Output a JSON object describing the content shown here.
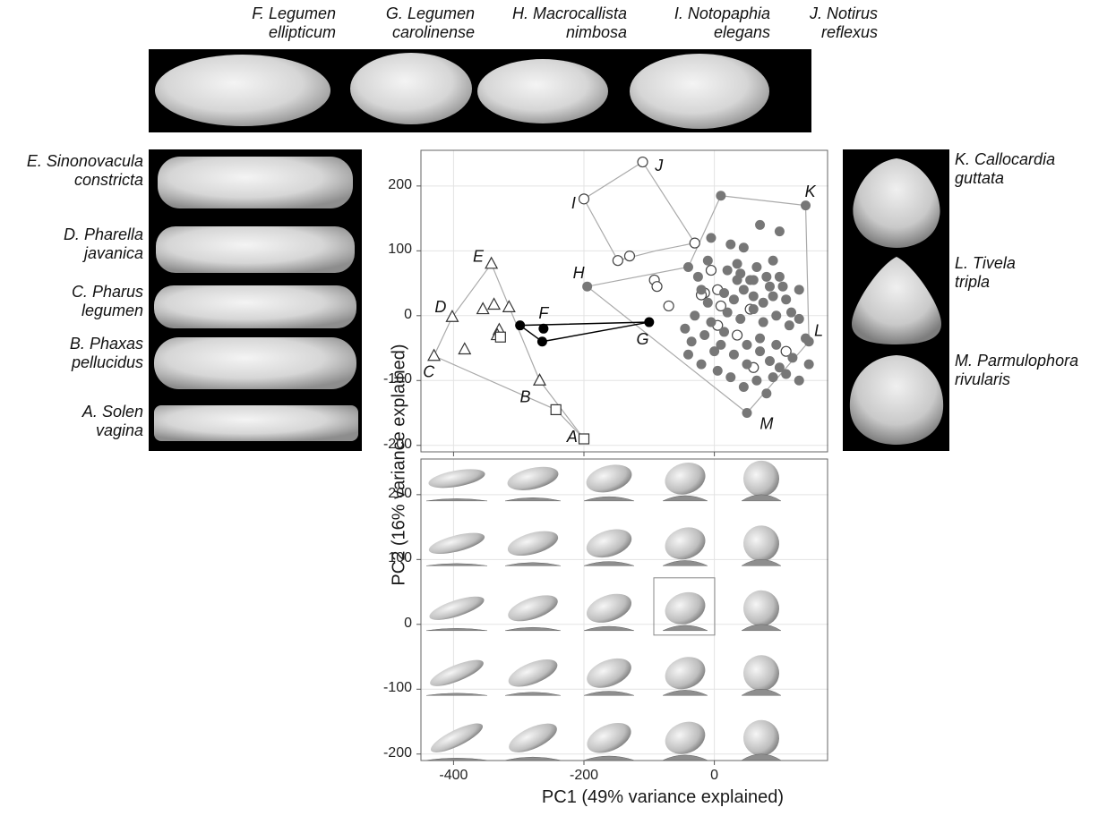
{
  "top_labels": [
    {
      "letter": "F.",
      "genus": "Legumen",
      "species": "ellipticum"
    },
    {
      "letter": "G.",
      "genus": "Legumen",
      "species": "carolinense"
    },
    {
      "letter": "H.",
      "genus": "Macrocallista",
      "species": "nimbosa"
    },
    {
      "letter": "I.",
      "genus": "Notopaphia",
      "species": "elegans"
    },
    {
      "letter": "J.",
      "genus": "Notirus",
      "species": "reflexus"
    }
  ],
  "left_labels": [
    {
      "letter": "E.",
      "genus": "Sinonovacula",
      "species": "constricta"
    },
    {
      "letter": "D.",
      "genus": "Pharella",
      "species": "javanica"
    },
    {
      "letter": "C.",
      "genus": "Pharus",
      "species": "legumen"
    },
    {
      "letter": "B.",
      "genus": "Phaxas",
      "species": "pellucidus"
    },
    {
      "letter": "A.",
      "genus": "Solen",
      "species": "vagina"
    }
  ],
  "right_labels": [
    {
      "letter": "K.",
      "genus": "Callocardia",
      "species": "guttata"
    },
    {
      "letter": "L.",
      "genus": "Tivela",
      "species": "tripla"
    },
    {
      "letter": "M.",
      "genus": "Parmulophora",
      "species": "rivularis"
    }
  ],
  "colors": {
    "grid": "#e3e3e3",
    "hull": "#aaaaaa",
    "gray_point": "#777777",
    "black_point": "#000000",
    "panel_bg": "#000000"
  },
  "chart_data": [
    {
      "type": "scatter",
      "xlabel": "PC1 (49% variance explained)",
      "ylabel": "PC2 (16% variance explained)",
      "xlim": [
        -450,
        175
      ],
      "ylim": [
        -210,
        255
      ],
      "x_ticks": [
        -400,
        -200,
        0
      ],
      "y_ticks": [
        200,
        100,
        0,
        -100,
        -200
      ],
      "grid": true,
      "series": [
        {
          "marker": "triangle",
          "points": [
            [
              -342,
              80
            ],
            [
              -402,
              -2
            ],
            [
              -430,
              -62
            ],
            [
              -383,
              -52
            ],
            [
              -355,
              10
            ],
            [
              -338,
              17
            ],
            [
              -315,
              13
            ],
            [
              -330,
              -22
            ],
            [
              -333,
              -30
            ],
            [
              -268,
              -100
            ]
          ]
        },
        {
          "marker": "square",
          "points": [
            [
              -328,
              -33
            ],
            [
              -243,
              -145
            ],
            [
              -200,
              -190
            ]
          ]
        },
        {
          "marker": "filled-black",
          "points": [
            [
              -298,
              -15
            ],
            [
              -262,
              -20
            ],
            [
              -264,
              -40
            ],
            [
              -100,
              -10
            ]
          ]
        },
        {
          "marker": "open-circle",
          "points": [
            [
              -200,
              180
            ],
            [
              -110,
              237
            ],
            [
              -148,
              85
            ],
            [
              -130,
              92
            ],
            [
              -92,
              55
            ],
            [
              -88,
              45
            ],
            [
              -70,
              15
            ],
            [
              -30,
              112
            ],
            [
              -5,
              70
            ],
            [
              5,
              40
            ],
            [
              10,
              15
            ],
            [
              5,
              -15
            ],
            [
              -15,
              35
            ],
            [
              -20,
              32
            ],
            [
              35,
              -30
            ],
            [
              55,
              10
            ],
            [
              60,
              -80
            ],
            [
              110,
              -55
            ]
          ]
        },
        {
          "marker": "filled-gray",
          "points": [
            [
              -195,
              45
            ],
            [
              10,
              185
            ],
            [
              140,
              170
            ],
            [
              -40,
              75
            ],
            [
              -25,
              60
            ],
            [
              -10,
              85
            ],
            [
              20,
              70
            ],
            [
              35,
              80
            ],
            [
              40,
              65
            ],
            [
              55,
              55
            ],
            [
              65,
              75
            ],
            [
              80,
              60
            ],
            [
              90,
              85
            ],
            [
              100,
              60
            ],
            [
              -20,
              40
            ],
            [
              -10,
              20
            ],
            [
              15,
              35
            ],
            [
              30,
              25
            ],
            [
              45,
              40
            ],
            [
              60,
              30
            ],
            [
              75,
              20
            ],
            [
              90,
              30
            ],
            [
              110,
              25
            ],
            [
              130,
              40
            ],
            [
              -30,
              0
            ],
            [
              -5,
              -10
            ],
            [
              20,
              5
            ],
            [
              40,
              -5
            ],
            [
              60,
              10
            ],
            [
              75,
              -10
            ],
            [
              95,
              0
            ],
            [
              115,
              -15
            ],
            [
              130,
              -5
            ],
            [
              145,
              -40
            ],
            [
              -35,
              -40
            ],
            [
              -15,
              -30
            ],
            [
              10,
              -45
            ],
            [
              30,
              -60
            ],
            [
              50,
              -45
            ],
            [
              70,
              -55
            ],
            [
              85,
              -70
            ],
            [
              100,
              -80
            ],
            [
              120,
              -65
            ],
            [
              -40,
              -60
            ],
            [
              -20,
              -75
            ],
            [
              5,
              -85
            ],
            [
              25,
              -95
            ],
            [
              45,
              -110
            ],
            [
              65,
              -100
            ],
            [
              80,
              -120
            ],
            [
              90,
              -95
            ],
            [
              110,
              -90
            ],
            [
              130,
              -100
            ],
            [
              50,
              -150
            ],
            [
              70,
              140
            ],
            [
              100,
              130
            ],
            [
              -5,
              120
            ],
            [
              25,
              110
            ],
            [
              45,
              105
            ],
            [
              -45,
              -20
            ],
            [
              0,
              -55
            ],
            [
              35,
              55
            ],
            [
              60,
              55
            ],
            [
              85,
              45
            ],
            [
              105,
              45
            ],
            [
              140,
              -35
            ],
            [
              15,
              -25
            ],
            [
              50,
              -75
            ],
            [
              70,
              -35
            ],
            [
              95,
              -45
            ],
            [
              118,
              5
            ],
            [
              145,
              -75
            ]
          ]
        }
      ],
      "hull_links": [
        {
          "kind": "open-polygon",
          "points": [
            [
              -342,
              80
            ],
            [
              -268,
              -100
            ],
            [
              -200,
              -190
            ],
            [
              -243,
              -145
            ],
            [
              -430,
              -62
            ],
            [
              -402,
              -2
            ],
            [
              -342,
              80
            ]
          ]
        },
        {
          "kind": "open-polygon",
          "points": [
            [
              -110,
              237
            ],
            [
              -200,
              180
            ],
            [
              -148,
              85
            ],
            [
              -90,
              100
            ],
            [
              -30,
              112
            ],
            [
              -110,
              237
            ]
          ]
        },
        {
          "kind": "open-polygon",
          "points": [
            [
              10,
              185
            ],
            [
              140,
              170
            ],
            [
              145,
              -40
            ],
            [
              50,
              -150
            ],
            [
              -195,
              45
            ],
            [
              -40,
              75
            ],
            [
              10,
              185
            ]
          ]
        },
        {
          "kind": "black",
          "points": [
            [
              -298,
              -15
            ],
            [
              -100,
              -10
            ],
            [
              -264,
              -40
            ],
            [
              -298,
              -15
            ]
          ]
        }
      ],
      "point_labels": [
        {
          "text": "A",
          "x": -218,
          "y": -188
        },
        {
          "text": "B",
          "x": -290,
          "y": -127
        },
        {
          "text": "C",
          "x": -438,
          "y": -88
        },
        {
          "text": "D",
          "x": -420,
          "y": 12
        },
        {
          "text": "E",
          "x": -362,
          "y": 90
        },
        {
          "text": "F",
          "x": -262,
          "y": 2
        },
        {
          "text": "G",
          "x": -110,
          "y": -38
        },
        {
          "text": "H",
          "x": -208,
          "y": 64
        },
        {
          "text": "I",
          "x": -216,
          "y": 172
        },
        {
          "text": "J",
          "x": -85,
          "y": 230
        },
        {
          "text": "K",
          "x": 147,
          "y": 190
        },
        {
          "text": "L",
          "x": 160,
          "y": -25
        },
        {
          "text": "M",
          "x": 80,
          "y": -168
        }
      ]
    },
    {
      "type": "scatter",
      "title": "",
      "xlim": [
        -450,
        175
      ],
      "ylim": [
        -210,
        255
      ],
      "x_ticks": [
        -400,
        -200,
        0
      ],
      "y_ticks": [
        200,
        100,
        0,
        -100,
        -200
      ],
      "grid": true,
      "morphospace_grid": {
        "columns_pc1": [
          -400,
          -300,
          -200,
          -100,
          0,
          100
        ],
        "rows_pc2": [
          200,
          100,
          0,
          -100,
          -200
        ],
        "highlight": [
          0,
          0
        ]
      }
    }
  ],
  "axis": {
    "xlabel": "PC1 (49% variance explained)",
    "ylabel": "PC2 (16% variance explained)",
    "x_tick_labels": [
      "-400",
      "-200",
      "0"
    ],
    "y_tick_labels": [
      "200",
      "100",
      "0",
      "-100",
      "-200"
    ]
  }
}
